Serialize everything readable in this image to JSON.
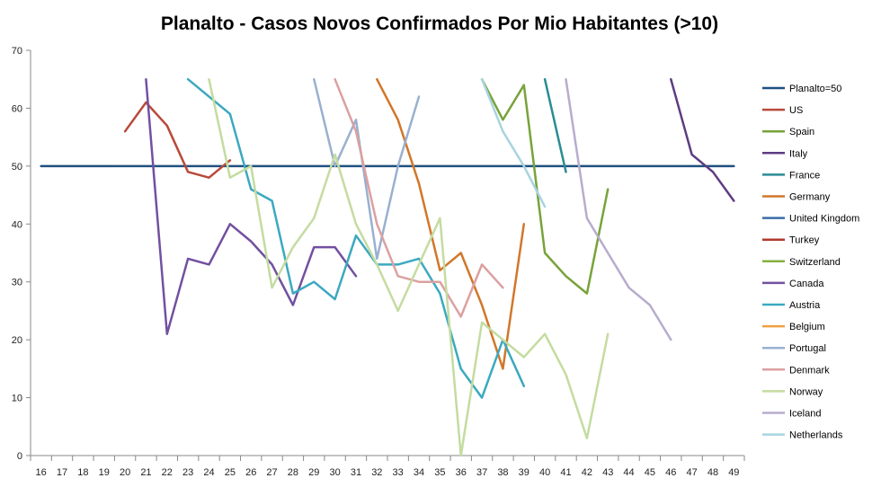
{
  "chart_data": {
    "type": "line",
    "title": "Planalto - Casos Novos Confirmados Por Mio Habitantes (>10)",
    "xlabel": "",
    "ylabel": "",
    "x": [
      16,
      17,
      18,
      19,
      20,
      21,
      22,
      23,
      24,
      25,
      26,
      27,
      28,
      29,
      30,
      31,
      32,
      33,
      34,
      35,
      36,
      37,
      38,
      39,
      40,
      41,
      42,
      43,
      44,
      45,
      46,
      47,
      48,
      49
    ],
    "x_tick_labels": [
      "16",
      "17",
      "18",
      "19",
      "20",
      "21",
      "22",
      "23",
      "24",
      "25",
      "26",
      "27",
      "28",
      "29",
      "30",
      "31",
      "32",
      "33",
      "34",
      "35",
      "36",
      "37",
      "38",
      "39",
      "40",
      "41",
      "42",
      "43",
      "44",
      "45",
      "46",
      "47",
      "48",
      "49"
    ],
    "ylim": [
      0,
      70
    ],
    "y_ticks": [
      0,
      10,
      20,
      30,
      40,
      50,
      60,
      70
    ],
    "grid": false,
    "legend_position": "right",
    "series": [
      {
        "name": "Planalto=50",
        "color": "#1F5080",
        "points": [
          [
            16,
            50
          ],
          [
            49,
            50
          ]
        ]
      },
      {
        "name": "US",
        "color": "#B84A3A",
        "points": [
          [
            20,
            56
          ],
          [
            21,
            61
          ],
          [
            22,
            57
          ],
          [
            23,
            49
          ],
          [
            24,
            48
          ],
          [
            25,
            51
          ]
        ]
      },
      {
        "name": "Spain",
        "color": "#77A33A",
        "points": [
          [
            37,
            65
          ],
          [
            38,
            58
          ],
          [
            39,
            64
          ],
          [
            40,
            35
          ],
          [
            41,
            31
          ],
          [
            42,
            28
          ],
          [
            43,
            46
          ]
        ]
      },
      {
        "name": "Italy",
        "color": "#5E3C82",
        "points": [
          [
            46,
            65
          ],
          [
            47,
            52
          ],
          [
            48,
            49
          ],
          [
            49,
            44
          ]
        ]
      },
      {
        "name": "France",
        "color": "#2A8C94",
        "points": [
          [
            40,
            65
          ],
          [
            41,
            49
          ]
        ]
      },
      {
        "name": "Germany",
        "color": "#D1772A",
        "points": [
          [
            32,
            65
          ],
          [
            33,
            58
          ],
          [
            34,
            47
          ],
          [
            35,
            32
          ],
          [
            36,
            35
          ],
          [
            37,
            26
          ],
          [
            38,
            15
          ],
          [
            39,
            40
          ]
        ]
      },
      {
        "name": "United Kingdom",
        "color": "#3A6EA8",
        "points": []
      },
      {
        "name": "Turkey",
        "color": "#B03A2E",
        "points": []
      },
      {
        "name": "Switzerland",
        "color": "#86B040",
        "points": []
      },
      {
        "name": "Canada",
        "color": "#7250A0",
        "points": [
          [
            21,
            65
          ],
          [
            22,
            21
          ],
          [
            23,
            34
          ],
          [
            24,
            33
          ],
          [
            25,
            40
          ],
          [
            26,
            37
          ],
          [
            27,
            33
          ],
          [
            28,
            26
          ],
          [
            29,
            36
          ],
          [
            30,
            36
          ],
          [
            31,
            31
          ]
        ]
      },
      {
        "name": "Austria",
        "color": "#3BA9C0",
        "points": [
          [
            23,
            65
          ],
          [
            25,
            59
          ],
          [
            26,
            46
          ],
          [
            27,
            44
          ],
          [
            28,
            28
          ],
          [
            29,
            30
          ],
          [
            30,
            27
          ],
          [
            31,
            38
          ],
          [
            32,
            33
          ],
          [
            33,
            33
          ],
          [
            34,
            34
          ],
          [
            35,
            28
          ],
          [
            36,
            15
          ],
          [
            37,
            10
          ],
          [
            38,
            20
          ],
          [
            39,
            12
          ]
        ]
      },
      {
        "name": "Belgium",
        "color": "#F0A040",
        "points": []
      },
      {
        "name": "Portugal",
        "color": "#9AB0D0",
        "points": [
          [
            29,
            65
          ],
          [
            30,
            50
          ],
          [
            31,
            58
          ],
          [
            32,
            34
          ],
          [
            33,
            50
          ],
          [
            34,
            62
          ]
        ]
      },
      {
        "name": "Denmark",
        "color": "#DCA0A0",
        "points": [
          [
            30,
            65
          ],
          [
            31,
            56
          ],
          [
            32,
            40
          ],
          [
            33,
            31
          ],
          [
            34,
            30
          ],
          [
            35,
            30
          ],
          [
            36,
            24
          ],
          [
            37,
            33
          ],
          [
            38,
            29
          ]
        ]
      },
      {
        "name": "Norway",
        "color": "#C4DCA0",
        "points": [
          [
            24,
            65
          ],
          [
            25,
            48
          ],
          [
            26,
            50
          ],
          [
            27,
            29
          ],
          [
            28,
            36
          ],
          [
            29,
            41
          ],
          [
            30,
            52
          ],
          [
            31,
            40
          ],
          [
            32,
            33
          ],
          [
            33,
            25
          ],
          [
            34,
            33
          ],
          [
            35,
            41
          ],
          [
            36,
            0
          ],
          [
            37,
            23
          ],
          [
            38,
            20
          ],
          [
            39,
            17
          ],
          [
            40,
            21
          ],
          [
            41,
            14
          ],
          [
            42,
            3
          ],
          [
            43,
            21
          ]
        ]
      },
      {
        "name": "Iceland",
        "color": "#B8ACCE",
        "points": [
          [
            41,
            65
          ],
          [
            42,
            41
          ],
          [
            43,
            35
          ],
          [
            44,
            29
          ],
          [
            45,
            26
          ],
          [
            46,
            20
          ]
        ]
      },
      {
        "name": "Netherlands",
        "color": "#A8D4E0",
        "points": [
          [
            37,
            65
          ],
          [
            38,
            56
          ],
          [
            39,
            50
          ],
          [
            40,
            43
          ]
        ]
      }
    ]
  }
}
